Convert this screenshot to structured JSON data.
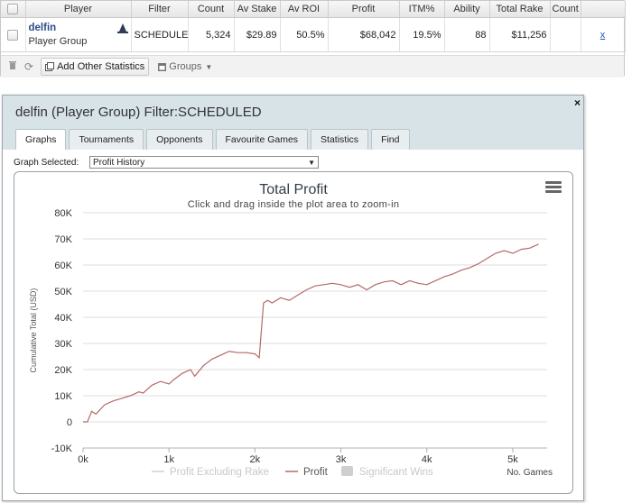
{
  "grid": {
    "columns": [
      "",
      "Player",
      "Filter",
      "Count",
      "Av Stake",
      "Av ROI",
      "Profit",
      "ITM%",
      "Ability",
      "Total Rake",
      "Count"
    ],
    "row": {
      "player_name": "delfin",
      "player_sub": "Player Group",
      "filter": "SCHEDULED",
      "count": "5,324",
      "av_stake": "$29.89",
      "av_roi": "50.5%",
      "profit": "$68,042",
      "itm": "19.5%",
      "ability": "88",
      "total_rake": "$11,256",
      "count2": "",
      "remove": "x"
    },
    "toolbar": {
      "add_stats": "Add Other Statistics",
      "groups": "Groups"
    }
  },
  "dialog": {
    "title": "delfin (Player Group) Filter:SCHEDULED",
    "close": "×",
    "tabs": [
      "Graphs",
      "Tournaments",
      "Opponents",
      "Favourite Games",
      "Statistics",
      "Find"
    ],
    "graph_selected_label": "Graph Selected:",
    "graph_selected_value": "Profit History"
  },
  "chart_data": {
    "type": "line",
    "title": "Total Profit",
    "subtitle": "Click and drag inside the plot area to zoom-in",
    "xlabel": "No. Games",
    "ylabel": "Cumulative Total (USD)",
    "xlim": [
      0,
      5400
    ],
    "ylim": [
      -10000,
      80000
    ],
    "x_ticks": [
      "0k",
      "1k",
      "2k",
      "3k",
      "4k",
      "5k"
    ],
    "y_ticks": [
      "-10K",
      "0",
      "10K",
      "20K",
      "30K",
      "40K",
      "50K",
      "60K",
      "70K",
      "80K"
    ],
    "grid": "horizontal",
    "legend": [
      "Profit Excluding Rake",
      "Profit",
      "Significant Wins"
    ],
    "legend_placement": "bottom",
    "series": [
      {
        "name": "Profit",
        "color": "#b56a6a",
        "x": [
          0,
          50,
          100,
          150,
          250,
          350,
          450,
          550,
          650,
          700,
          800,
          900,
          1000,
          1050,
          1150,
          1250,
          1300,
          1400,
          1500,
          1600,
          1700,
          1800,
          1900,
          2000,
          2050,
          2100,
          2150,
          2200,
          2300,
          2400,
          2500,
          2600,
          2700,
          2800,
          2900,
          3000,
          3100,
          3200,
          3300,
          3400,
          3500,
          3600,
          3700,
          3800,
          3900,
          4000,
          4100,
          4200,
          4300,
          4400,
          4500,
          4600,
          4700,
          4800,
          4900,
          5000,
          5100,
          5200,
          5300
        ],
        "y": [
          0,
          0,
          4000,
          3000,
          6500,
          8000,
          9000,
          10000,
          11500,
          11000,
          14000,
          15500,
          14500,
          16000,
          18500,
          20000,
          17500,
          21500,
          24000,
          25500,
          27000,
          26500,
          26500,
          26000,
          24500,
          45500,
          46500,
          45500,
          47500,
          46500,
          48500,
          50500,
          52000,
          52500,
          53000,
          52500,
          51500,
          52500,
          50500,
          52500,
          53500,
          54000,
          52500,
          54000,
          53000,
          52500,
          54000,
          55500,
          56500,
          58000,
          59000,
          60500,
          62500,
          64500,
          65500,
          64500,
          66000,
          66500,
          68000
        ]
      }
    ]
  }
}
